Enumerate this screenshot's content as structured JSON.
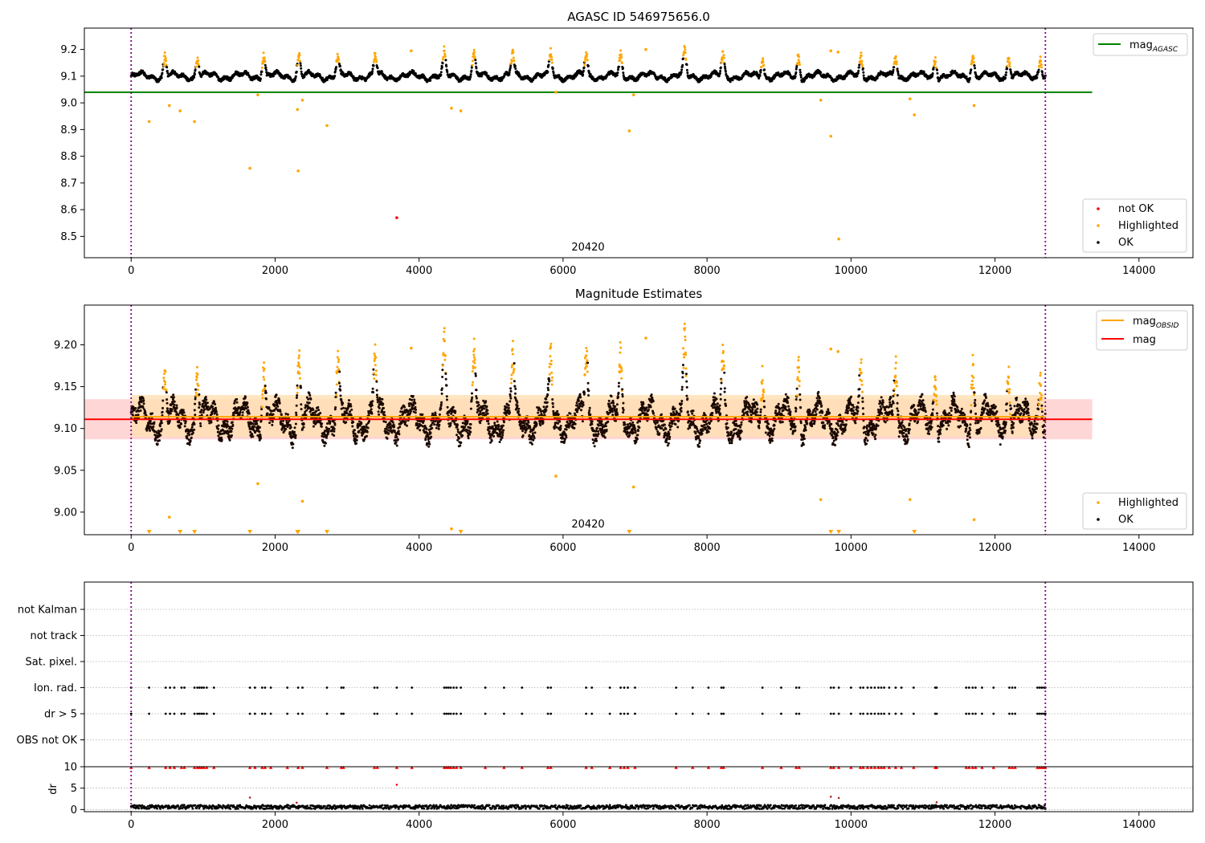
{
  "figure": {
    "panels": [
      {
        "id": "agasc",
        "title": "AGASC ID 546975656.0",
        "center_label": "20420",
        "legend_top": {
          "label_main": "mag",
          "label_sub": "AGASC"
        },
        "legend_bottom": [
          "not OK",
          "Highlighted",
          "OK"
        ]
      },
      {
        "id": "estimates",
        "title": "Magnitude Estimates",
        "center_label": "20420",
        "legend_top": {
          "label1_main": "mag",
          "label1_sub": "OBSID",
          "label2": "mag"
        },
        "legend_bottom": [
          "Highlighted",
          "OK"
        ]
      },
      {
        "id": "flags",
        "title": ""
      }
    ]
  },
  "chart_data": [
    {
      "type": "scatter",
      "title": "AGASC ID 546975656.0",
      "xlim": [
        -650,
        14750
      ],
      "ylim": [
        8.42,
        9.28
      ],
      "x_ticks": [
        0,
        2000,
        4000,
        6000,
        8000,
        10000,
        12000,
        14000
      ],
      "y_ticks": [
        8.5,
        8.6,
        8.7,
        8.8,
        8.9,
        9.0,
        9.1,
        9.2
      ],
      "grid": false,
      "vlines": [
        0,
        12700
      ],
      "hlines": [
        {
          "name": "mag_AGASC",
          "y": 9.04,
          "x_range": [
            -650,
            13350
          ],
          "color": "#008000"
        }
      ],
      "band": {
        "center": 9.1,
        "halfwidth": 0.018,
        "noise": 0.006,
        "x_range": [
          0,
          12700
        ]
      },
      "outbursts": [
        {
          "x": 470,
          "y": 9.18
        },
        {
          "x": 920,
          "y": 9.18
        },
        {
          "x": 1840,
          "y": 9.19
        },
        {
          "x": 2330,
          "y": 9.19
        },
        {
          "x": 2870,
          "y": 9.18
        },
        {
          "x": 3390,
          "y": 9.19
        },
        {
          "x": 4350,
          "y": 9.19
        },
        {
          "x": 4760,
          "y": 9.19
        },
        {
          "x": 5300,
          "y": 9.19
        },
        {
          "x": 5830,
          "y": 9.19
        },
        {
          "x": 6320,
          "y": 9.2
        },
        {
          "x": 6800,
          "y": 9.18
        },
        {
          "x": 7690,
          "y": 9.2
        },
        {
          "x": 8220,
          "y": 9.19
        },
        {
          "x": 8770,
          "y": 9.18
        },
        {
          "x": 9270,
          "y": 9.19
        },
        {
          "x": 10140,
          "y": 9.18
        },
        {
          "x": 10620,
          "y": 9.19
        },
        {
          "x": 11170,
          "y": 9.18
        },
        {
          "x": 11690,
          "y": 9.19
        },
        {
          "x": 12190,
          "y": 9.19
        },
        {
          "x": 12630,
          "y": 9.18
        }
      ],
      "series": [
        {
          "name": "not OK",
          "color": "#ff0000",
          "points": [
            [
              3690,
              8.57
            ]
          ]
        },
        {
          "name": "Highlighted",
          "color": "#ffa500",
          "points": [
            [
              250,
              8.93
            ],
            [
              530,
              8.99
            ],
            [
              680,
              8.97
            ],
            [
              880,
              8.93
            ],
            [
              1650,
              8.755
            ],
            [
              1760,
              9.03
            ],
            [
              2310,
              8.975
            ],
            [
              2320,
              8.745
            ],
            [
              2380,
              9.01
            ],
            [
              2720,
              8.915
            ],
            [
              4450,
              8.98
            ],
            [
              4580,
              8.97
            ],
            [
              5900,
              9.04
            ],
            [
              6920,
              8.895
            ],
            [
              6980,
              9.03
            ],
            [
              9580,
              9.01
            ],
            [
              9720,
              8.875
            ],
            [
              9830,
              8.49
            ],
            [
              10820,
              9.015
            ],
            [
              10880,
              8.955
            ],
            [
              11710,
              8.99
            ],
            [
              3890,
              9.195
            ],
            [
              7150,
              9.2
            ],
            [
              9720,
              9.195
            ],
            [
              9820,
              9.19
            ]
          ]
        },
        {
          "name": "OK",
          "color": "#000000",
          "points": []
        }
      ]
    },
    {
      "type": "scatter",
      "title": "Magnitude Estimates",
      "xlim": [
        -650,
        14750
      ],
      "ylim": [
        8.973,
        9.2475
      ],
      "x_ticks": [
        0,
        2000,
        4000,
        6000,
        8000,
        10000,
        12000,
        14000
      ],
      "y_ticks": [
        9.0,
        9.05,
        9.1,
        9.15,
        9.2
      ],
      "y_tick_labels": [
        "9.00",
        "9.05",
        "9.10",
        "9.15",
        "9.20"
      ],
      "grid": false,
      "vlines": [
        0,
        12700
      ],
      "hlines": [
        {
          "name": "mag",
          "y": 9.111,
          "x_range": [
            -650,
            13350
          ],
          "color": "#ff0000"
        },
        {
          "name": "mag_OBSID",
          "y": 9.114,
          "x_range": [
            0,
            12700
          ],
          "color": "#ffa500"
        }
      ],
      "bands": [
        {
          "y": [
            9.087,
            9.135
          ],
          "x_range": [
            -650,
            13350
          ],
          "color": "#ffcccc"
        },
        {
          "y": [
            9.09,
            9.14
          ],
          "x_range": [
            0,
            12700
          ],
          "color": "#ffe0b2"
        }
      ],
      "band": {
        "center": 9.11,
        "halfwidth": 0.025,
        "noise": 0.01,
        "x_range": [
          0,
          12700
        ]
      },
      "outbursts": [
        {
          "x": 470,
          "y": 9.18
        },
        {
          "x": 920,
          "y": 9.18
        },
        {
          "x": 1840,
          "y": 9.19
        },
        {
          "x": 2330,
          "y": 9.19
        },
        {
          "x": 2870,
          "y": 9.18
        },
        {
          "x": 3390,
          "y": 9.19
        },
        {
          "x": 4350,
          "y": 9.19
        },
        {
          "x": 4760,
          "y": 9.19
        },
        {
          "x": 5300,
          "y": 9.19
        },
        {
          "x": 5830,
          "y": 9.19
        },
        {
          "x": 6320,
          "y": 9.2
        },
        {
          "x": 6800,
          "y": 9.18
        },
        {
          "x": 7690,
          "y": 9.2
        },
        {
          "x": 8220,
          "y": 9.19
        },
        {
          "x": 8770,
          "y": 9.18
        },
        {
          "x": 9270,
          "y": 9.19
        },
        {
          "x": 10140,
          "y": 9.18
        },
        {
          "x": 10620,
          "y": 9.19
        },
        {
          "x": 11170,
          "y": 9.18
        },
        {
          "x": 11690,
          "y": 9.19
        },
        {
          "x": 12190,
          "y": 9.19
        },
        {
          "x": 12630,
          "y": 9.18
        }
      ],
      "series": [
        {
          "name": "Highlighted",
          "color": "#ffa500",
          "points": [
            [
              530,
              8.994
            ],
            [
              1760,
              9.034
            ],
            [
              2380,
              9.013
            ],
            [
              4450,
              8.98
            ],
            [
              5900,
              9.043
            ],
            [
              6980,
              9.03
            ],
            [
              9580,
              9.015
            ],
            [
              10820,
              9.015
            ],
            [
              11710,
              8.991
            ],
            [
              3890,
              9.196
            ],
            [
              7150,
              9.208
            ],
            [
              9720,
              9.195
            ],
            [
              9820,
              9.192
            ]
          ]
        },
        {
          "name": "OK",
          "color": "#000000",
          "points": []
        }
      ],
      "below_axis_markers": [
        250,
        680,
        880,
        1650,
        2310,
        2320,
        2720,
        4580,
        6920,
        9720,
        9830,
        10880
      ]
    },
    {
      "type": "scatter",
      "title": "",
      "xlim": [
        -650,
        14750
      ],
      "x_ticks": [
        0,
        2000,
        4000,
        6000,
        8000,
        10000,
        12000,
        14000
      ],
      "vlines": [
        0,
        12700
      ],
      "flag_rows": [
        "not Kalman",
        "not track",
        "Sat. pixel.",
        "Ion. rad.",
        "dr > 5",
        "OBS not OK"
      ],
      "flag_events_x": [
        0,
        250,
        480,
        540,
        600,
        700,
        740,
        880,
        920,
        950,
        980,
        1010,
        1050,
        1150,
        1650,
        1720,
        1820,
        1860,
        1940,
        2170,
        2320,
        2380,
        2720,
        2920,
        2950,
        3380,
        3420,
        3690,
        3900,
        4350,
        4380,
        4410,
        4440,
        4480,
        4520,
        4580,
        4920,
        5180,
        5430,
        5790,
        5830,
        6320,
        6400,
        6650,
        6800,
        6850,
        6900,
        7000,
        7570,
        7800,
        8020,
        8200,
        8230,
        8770,
        9030,
        9240,
        9280,
        9720,
        9760,
        9830,
        10000,
        10130,
        10170,
        10230,
        10280,
        10330,
        10380,
        10420,
        10460,
        10530,
        10620,
        10700,
        10870,
        11170,
        11190,
        11600,
        11640,
        11690,
        11730,
        11820,
        11980,
        12200,
        12240,
        12280,
        12590,
        12620,
        12650,
        12680,
        12700
      ],
      "flag_event_rows": [
        "Ion. rad.",
        "dr > 5"
      ],
      "dr": {
        "ylabel": "dr",
        "ylim": [
          -0.5,
          10
        ],
        "y_ticks": [
          0,
          5,
          10
        ],
        "baseline": 0.6,
        "noise": 0.45,
        "capped_value": 9.85,
        "outliers": [
          [
            3690,
            5.8
          ],
          [
            1650,
            2.8
          ],
          [
            9720,
            3.0
          ],
          [
            9830,
            2.7
          ],
          [
            2300,
            1.6
          ],
          [
            11190,
            1.7
          ]
        ]
      }
    }
  ]
}
